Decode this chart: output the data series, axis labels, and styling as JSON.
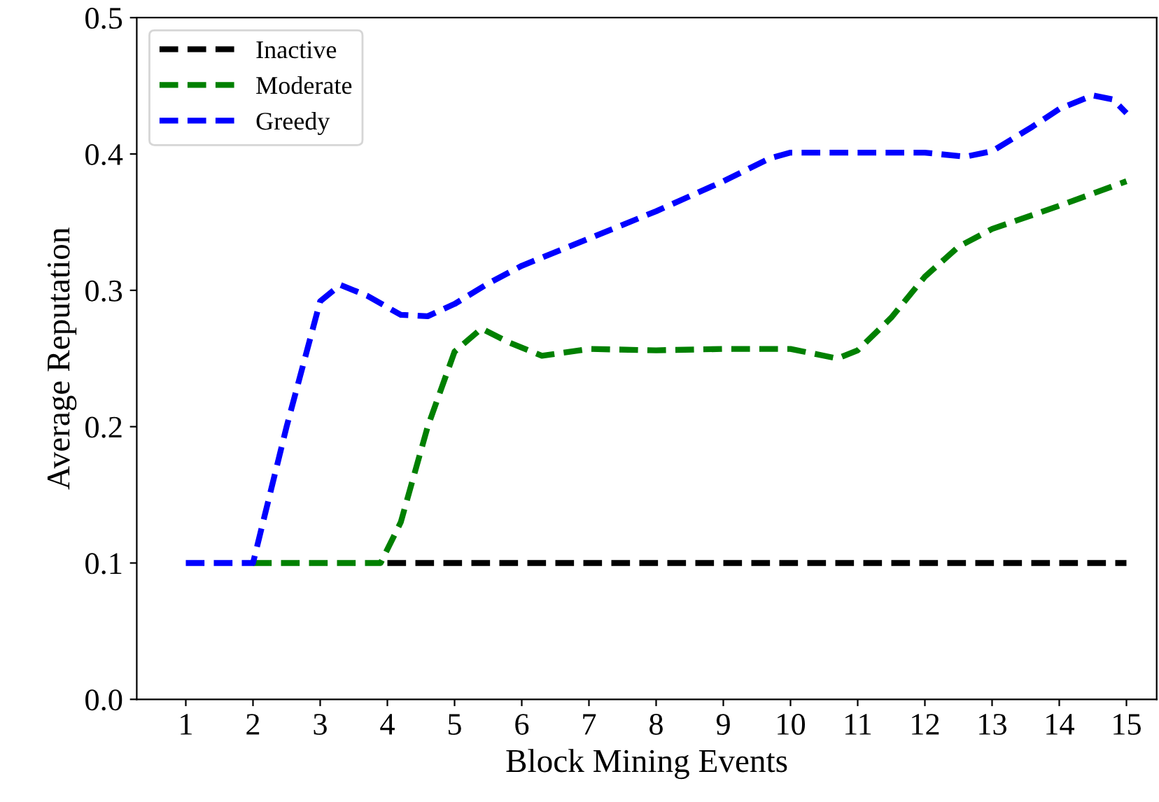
{
  "chart_data": {
    "type": "line",
    "xlabel": "Block Mining Events",
    "ylabel": "Average Reputation",
    "xlim": [
      0.27,
      15.45
    ],
    "xticks": [
      1,
      2,
      3,
      4,
      5,
      6,
      7,
      8,
      9,
      10,
      11,
      12,
      13,
      14,
      15
    ],
    "ylim": [
      0,
      0.5
    ],
    "yticks": [
      {
        "value": 0,
        "label": "0.0"
      },
      {
        "value": 0.1,
        "label": "0.1"
      },
      {
        "value": 0.2,
        "label": "0.2"
      },
      {
        "value": 0.3,
        "label": "0.3"
      },
      {
        "value": 0.4,
        "label": "0.4"
      },
      {
        "value": 0.5,
        "label": "0.5"
      }
    ],
    "line_style": "dashed",
    "marker": "none",
    "grid": false,
    "legend": "top left",
    "series": [
      {
        "name": "Inactive",
        "color": "#000000",
        "x": [
          4,
          5,
          6,
          7,
          8,
          9,
          10,
          11,
          12,
          13,
          14,
          15
        ],
        "values": [
          0.1,
          0.1,
          0.1,
          0.1,
          0.1,
          0.1,
          0.1,
          0.1,
          0.1,
          0.1,
          0.1,
          0.1
        ]
      },
      {
        "name": "Moderate",
        "color": "#008000",
        "x": [
          2,
          3,
          3.9,
          4.2,
          4.6,
          5,
          5.4,
          5.8,
          6.3,
          7,
          8,
          9,
          10,
          10.7,
          11,
          11.5,
          12,
          12.5,
          13,
          14,
          15
        ],
        "values": [
          0.1,
          0.1,
          0.1,
          0.13,
          0.2,
          0.255,
          0.272,
          0.262,
          0.252,
          0.257,
          0.256,
          0.257,
          0.257,
          0.25,
          0.256,
          0.28,
          0.31,
          0.332,
          0.345,
          0.362,
          0.38
        ]
      },
      {
        "name": "Greedy",
        "color": "#0000ff",
        "x": [
          1,
          2,
          2.5,
          3,
          3.3,
          3.7,
          4.2,
          4.6,
          5,
          5.5,
          6,
          7,
          8,
          9,
          9.7,
          10,
          11,
          12,
          12.6,
          13,
          13.6,
          14,
          14.5,
          14.8,
          15
        ],
        "values": [
          0.1,
          0.1,
          0.2,
          0.292,
          0.304,
          0.296,
          0.282,
          0.281,
          0.29,
          0.305,
          0.318,
          0.338,
          0.358,
          0.38,
          0.397,
          0.401,
          0.401,
          0.401,
          0.398,
          0.402,
          0.42,
          0.433,
          0.443,
          0.44,
          0.43
        ]
      }
    ]
  }
}
